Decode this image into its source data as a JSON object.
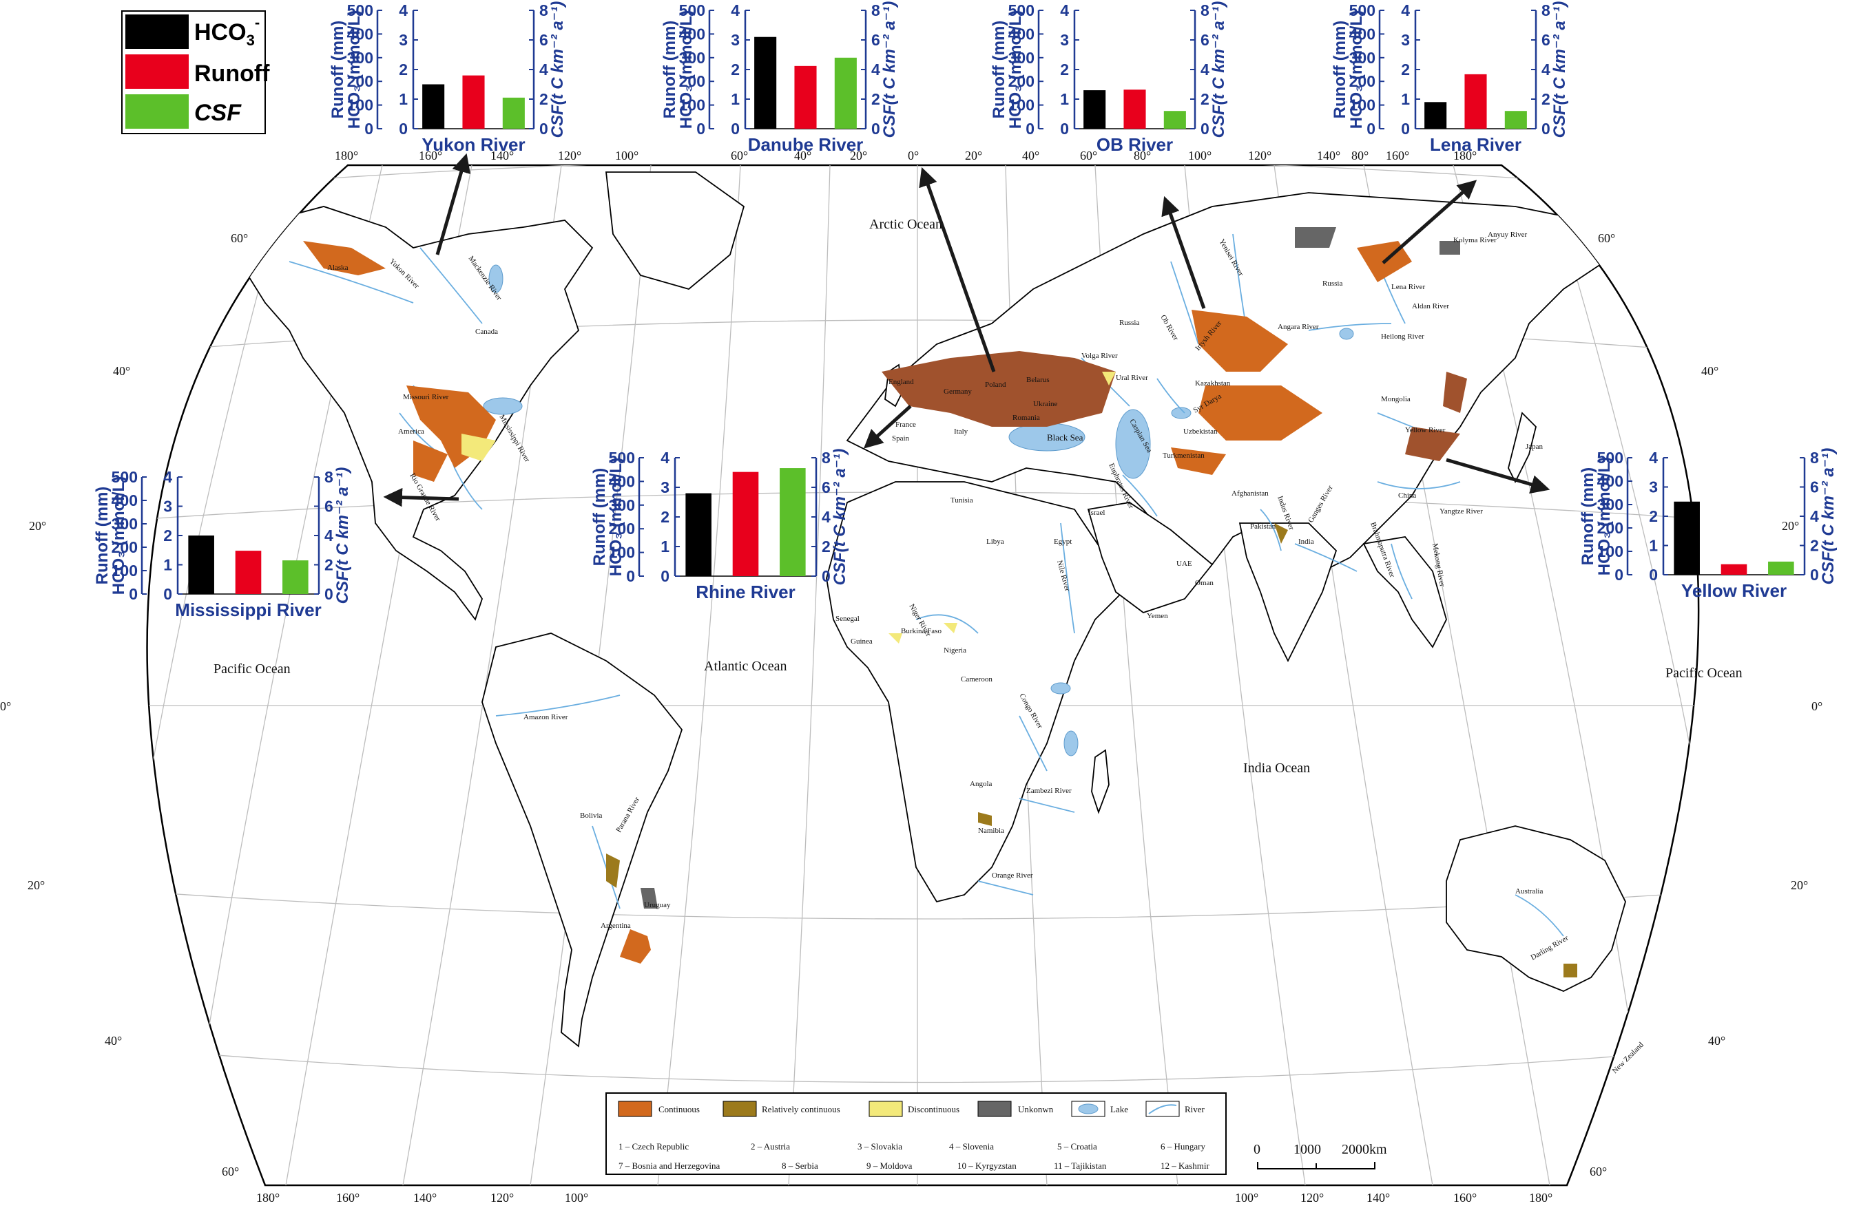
{
  "main_legend": {
    "items": [
      {
        "label": "HCO",
        "sub": "3",
        "sup": "-",
        "color": "#000000",
        "italic": false
      },
      {
        "label": "Runoff",
        "sub": "",
        "sup": "",
        "color": "#e8001c",
        "italic": false
      },
      {
        "label": "CSF",
        "sub": "",
        "sup": "",
        "color": "#5cbf2a",
        "italic": true
      }
    ]
  },
  "oceans": {
    "arctic": "Arctic Ocean",
    "pacific_west": "Pacific Ocean",
    "pacific_east": "Pacific Ocean",
    "atlantic": "Atlantic Ocean",
    "indian": "India Ocean",
    "black_sea": "Black Sea",
    "caspian_sea": "Caspian Sea"
  },
  "place_labels": {
    "alaska": "Alaska",
    "canada": "Canada",
    "america": "America",
    "yukon_river": "Yukon River",
    "mackenzie_river": "Mackenzie River",
    "missouri_river": "Missouri River",
    "mississippi_river": "Mississippi River",
    "rio_grande_river": "Rio Grande River",
    "amazon_river": "Amazon River",
    "parana_river": "Parana River",
    "bolivia": "Bolivia",
    "argentina": "Argentina",
    "uruguay": "Uruguay",
    "russia_west": "Russia",
    "russia_east": "Russia",
    "yenisei_river": "Yenisei River",
    "ob_river": "Ob River",
    "irtysh_river": "Irtysh River",
    "volga_river": "Volga River",
    "ural_river": "Ural River",
    "lena_river": "Lena River",
    "anyuy_river": "Anyuy River",
    "kolyma_river": "Kolyma River",
    "aldan_river": "Aldan River",
    "angara_river": "Angara River",
    "heilong_river": "Heilong River",
    "yellow_river": "Yellow River",
    "yangtze_river": "Yangtze River",
    "mongolia": "Mongolia",
    "china": "China",
    "japan": "Japan",
    "kazakhstan": "Kazakhstan",
    "uzbekistan": "Uzbekistan",
    "turkmenistan": "Turkmenistan",
    "afghanistan": "Afghanistan",
    "pakistan": "Pakistan",
    "india": "India",
    "indus_river": "Indus River",
    "ganges_river": "Ganges River",
    "brahmaputra_river": "Brahmaputra River",
    "mekong_river": "Mekong River",
    "euphrates_river": "Euphrates River",
    "syr_darya": "Syr Darya",
    "england": "England",
    "france": "France",
    "germany": "Germany",
    "poland": "Poland",
    "belarus": "Belarus",
    "ukraine": "Ukraine",
    "romania": "Romania",
    "italy": "Italy",
    "spain": "Spain",
    "tunisia": "Tunisia",
    "libya": "Libya",
    "egypt": "Egypt",
    "israel": "Israel",
    "uae": "UAE",
    "oman": "Oman",
    "yemen": "Yemen",
    "nile_river": "Nile River",
    "niger_river": "Niger River",
    "congo_river": "Congo River",
    "zambezi_river": "Zambezi River",
    "orange_river": "Orange River",
    "senegal": "Senegal",
    "guinea": "Guinea",
    "burkina_faso": "Burkina Faso",
    "nigeria": "Nigeria",
    "cameroon": "Cameroon",
    "angola": "Angola",
    "namibia": "Namibia",
    "australia": "Australia",
    "darling_river": "Darling River",
    "new_zealand": "New Zealand"
  },
  "graticule": {
    "top_lon": [
      "180°",
      "160°",
      "140°",
      "120°",
      "100°",
      "60°",
      "40°",
      "20°",
      "0°",
      "20°",
      "40°",
      "60°",
      "80°",
      "100°",
      "120°",
      "140°",
      "80°",
      "160°",
      "180°"
    ],
    "bottom_lon": [
      "180°",
      "160°",
      "140°",
      "120°",
      "100°",
      "100°",
      "120°",
      "140°",
      "160°",
      "180°"
    ],
    "left_lat": [
      "60°",
      "40°",
      "20°",
      "0°",
      "20°",
      "40°",
      "60°"
    ],
    "right_lat": [
      "60°",
      "40°",
      "20°",
      "0°",
      "20°",
      "40°",
      "60°"
    ]
  },
  "scale_bar": {
    "ticks": [
      "0",
      "1000",
      "2000km"
    ]
  },
  "map_legend": {
    "items": [
      {
        "label": "Continuous",
        "color": "#d2691e",
        "kind": "swatch"
      },
      {
        "label": "Relatively continuous",
        "color": "#9c7a1c",
        "kind": "swatch"
      },
      {
        "label": "Discontinuous",
        "color": "#f3e97a",
        "kind": "swatch"
      },
      {
        "label": "Unkonwn",
        "color": "#666666",
        "kind": "swatch"
      },
      {
        "label": "Lake",
        "color": "#9dc8ea",
        "kind": "lake"
      },
      {
        "label": "River",
        "color": "#6aaee0",
        "kind": "river"
      }
    ],
    "countries": [
      "1 – Czech Republic",
      "2 – Austria",
      "3 – Slovakia",
      "4 – Slovenia",
      "5 – Croatia",
      "6 – Hungary",
      "7 – Bosnia and Herzegovina",
      "8 – Serbia",
      "9 – Moldova",
      "10 – Kyrgyzstan",
      "11 – Tajikistan",
      "12 – Kashmir"
    ]
  },
  "axis_labels": {
    "runoff": "Runoff (mm)",
    "hco3": "HCO₃ (mmol/L)",
    "csf": "CSF(t C km⁻² a⁻¹)"
  },
  "chart_data": [
    {
      "type": "bar",
      "river": "Yukon River",
      "axes": {
        "runoff": [
          0,
          500
        ],
        "hco3": [
          0,
          4
        ],
        "csf": [
          0,
          8
        ]
      },
      "runoff_ticks": [
        "0",
        "100",
        "200",
        "300",
        "400",
        "500"
      ],
      "hco3_ticks": [
        "0",
        "1",
        "2",
        "3",
        "4"
      ],
      "csf_ticks": [
        "0",
        "2",
        "4",
        "6",
        "8"
      ],
      "series": [
        {
          "name": "HCO3-",
          "axis": "hco3",
          "value": 1.5
        },
        {
          "name": "Runoff",
          "axis": "runoff",
          "value": 225
        },
        {
          "name": "CSF",
          "axis": "csf",
          "value": 2.1
        }
      ]
    },
    {
      "type": "bar",
      "river": "Danube River",
      "axes": {
        "runoff": [
          0,
          500
        ],
        "hco3": [
          0,
          4
        ],
        "csf": [
          0,
          8
        ]
      },
      "runoff_ticks": [
        "0",
        "100",
        "200",
        "300",
        "400",
        "500"
      ],
      "hco3_ticks": [
        "0",
        "1",
        "2",
        "3",
        "4"
      ],
      "csf_ticks": [
        "0",
        "2",
        "4",
        "6",
        "8"
      ],
      "series": [
        {
          "name": "HCO3-",
          "axis": "hco3",
          "value": 3.1
        },
        {
          "name": "Runoff",
          "axis": "runoff",
          "value": 265
        },
        {
          "name": "CSF",
          "axis": "csf",
          "value": 4.8
        }
      ]
    },
    {
      "type": "bar",
      "river": "OB River",
      "axes": {
        "runoff": [
          0,
          500
        ],
        "hco3": [
          0,
          4
        ],
        "csf": [
          0,
          8
        ]
      },
      "runoff_ticks": [
        "0",
        "100",
        "200",
        "300",
        "400",
        "500"
      ],
      "hco3_ticks": [
        "0",
        "1",
        "2",
        "3",
        "4"
      ],
      "csf_ticks": [
        "0",
        "2",
        "4",
        "6",
        "8"
      ],
      "series": [
        {
          "name": "HCO3-",
          "axis": "hco3",
          "value": 1.3
        },
        {
          "name": "Runoff",
          "axis": "runoff",
          "value": 165
        },
        {
          "name": "CSF",
          "axis": "csf",
          "value": 1.2
        }
      ]
    },
    {
      "type": "bar",
      "river": "Lena River",
      "axes": {
        "runoff": [
          0,
          500
        ],
        "hco3": [
          0,
          4
        ],
        "csf": [
          0,
          8
        ]
      },
      "runoff_ticks": [
        "0",
        "100",
        "200",
        "300",
        "400",
        "500"
      ],
      "hco3_ticks": [
        "0",
        "1",
        "2",
        "3",
        "4"
      ],
      "csf_ticks": [
        "0",
        "2",
        "4",
        "6",
        "8"
      ],
      "series": [
        {
          "name": "HCO3-",
          "axis": "hco3",
          "value": 0.9
        },
        {
          "name": "Runoff",
          "axis": "runoff",
          "value": 230
        },
        {
          "name": "CSF",
          "axis": "csf",
          "value": 1.2
        }
      ]
    },
    {
      "type": "bar",
      "river": "Mississippi River",
      "axes": {
        "runoff": [
          0,
          500
        ],
        "hco3": [
          0,
          4
        ],
        "csf": [
          0,
          8
        ]
      },
      "runoff_ticks": [
        "0",
        "100",
        "200",
        "300",
        "400",
        "500"
      ],
      "hco3_ticks": [
        "0",
        "1",
        "2",
        "3",
        "4"
      ],
      "csf_ticks": [
        "0",
        "2",
        "4",
        "6",
        "8"
      ],
      "series": [
        {
          "name": "HCO3-",
          "axis": "hco3",
          "value": 2.0
        },
        {
          "name": "Runoff",
          "axis": "runoff",
          "value": 185
        },
        {
          "name": "CSF",
          "axis": "csf",
          "value": 2.3
        }
      ]
    },
    {
      "type": "bar",
      "river": "Rhine River",
      "axes": {
        "runoff": [
          0,
          500
        ],
        "hco3": [
          0,
          4
        ],
        "csf": [
          0,
          8
        ]
      },
      "runoff_ticks": [
        "0",
        "100",
        "200",
        "300",
        "400",
        "500"
      ],
      "hco3_ticks": [
        "0",
        "1",
        "2",
        "3",
        "4"
      ],
      "csf_ticks": [
        "0",
        "2",
        "4",
        "6",
        "8"
      ],
      "series": [
        {
          "name": "HCO3-",
          "axis": "hco3",
          "value": 2.8
        },
        {
          "name": "Runoff",
          "axis": "runoff",
          "value": 440
        },
        {
          "name": "CSF",
          "axis": "csf",
          "value": 7.3
        }
      ]
    },
    {
      "type": "bar",
      "river": "Yellow River",
      "axes": {
        "runoff": [
          0,
          500
        ],
        "hco3": [
          0,
          4
        ],
        "csf": [
          0,
          8
        ]
      },
      "runoff_ticks": [
        "0",
        "100",
        "200",
        "300",
        "400",
        "500"
      ],
      "hco3_ticks": [
        "0",
        "1",
        "2",
        "3",
        "4"
      ],
      "csf_ticks": [
        "0",
        "2",
        "4",
        "6",
        "8"
      ],
      "series": [
        {
          "name": "HCO3-",
          "axis": "hco3",
          "value": 2.5
        },
        {
          "name": "Runoff",
          "axis": "runoff",
          "value": 45
        },
        {
          "name": "CSF",
          "axis": "csf",
          "value": 0.9
        }
      ]
    }
  ]
}
